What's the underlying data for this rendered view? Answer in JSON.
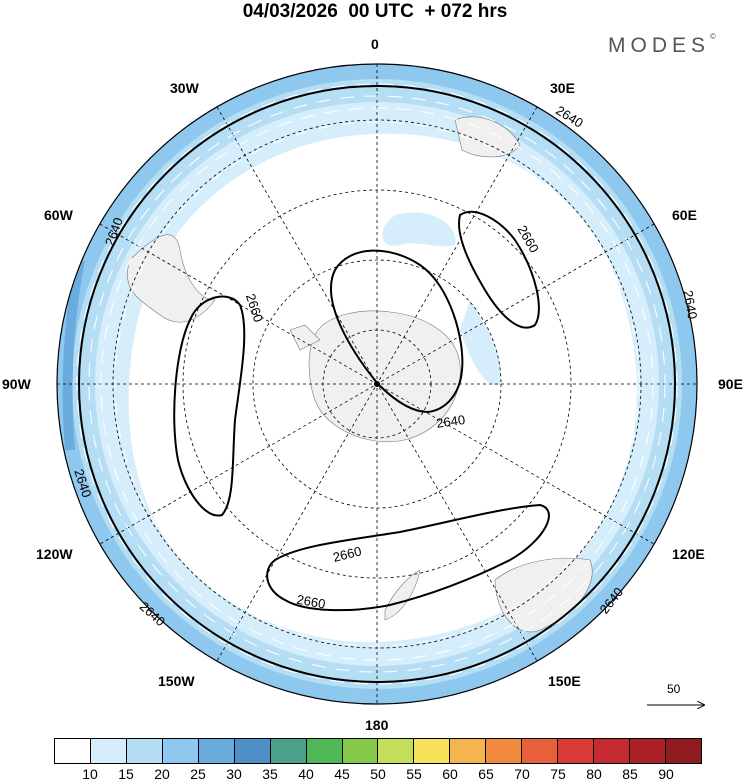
{
  "title": "04/03/2026  00 UTC  + 072 hrs",
  "brand": {
    "name": "MODES",
    "mark": "©"
  },
  "longitude_labels": {
    "lon_0": "0",
    "lon_30e": "30E",
    "lon_60e": "60E",
    "lon_90e": "90E",
    "lon_120e": "120E",
    "lon_150e": "150E",
    "lon_180": "180",
    "lon_150w": "150W",
    "lon_120w": "120W",
    "lon_90w": "90W",
    "lon_60w": "60W",
    "lon_30w": "30W"
  },
  "contour_labels": {
    "c1": "2640",
    "c2": "2640",
    "c3": "2640",
    "c4": "2640",
    "c5": "2640",
    "c6": "2660",
    "c7": "2660",
    "c8": "2660",
    "c9": "2660",
    "c10": "2640"
  },
  "reference_vector": {
    "value": "50"
  },
  "colorbar": {
    "ticks": [
      "10",
      "15",
      "20",
      "25",
      "30",
      "35",
      "40",
      "45",
      "50",
      "55",
      "60",
      "65",
      "70",
      "75",
      "80",
      "85",
      "90"
    ],
    "colors": [
      "#ffffff",
      "#d6eefb",
      "#b5def5",
      "#8ec8ee",
      "#6aacde",
      "#4e8fc8",
      "#4ba08c",
      "#4fb857",
      "#86c84a",
      "#c5de5a",
      "#f7e05a",
      "#f4b450",
      "#ef8a3e",
      "#e8603a",
      "#d93a35",
      "#c42a30",
      "#aa2026",
      "#8e1b20"
    ]
  }
}
